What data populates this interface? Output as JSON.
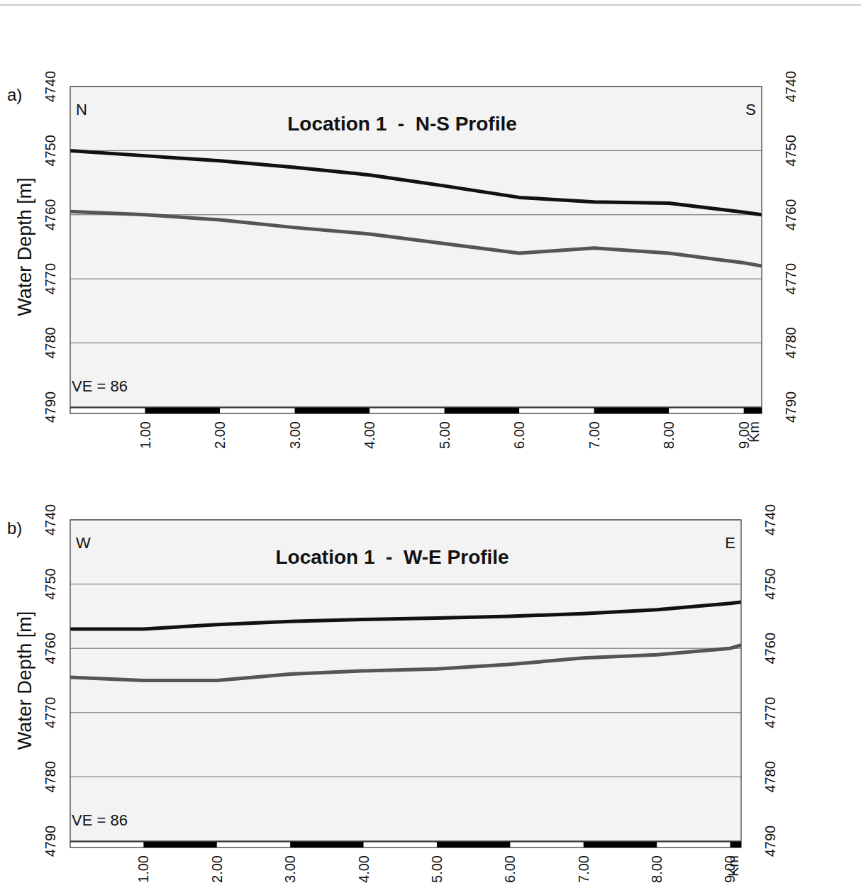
{
  "chart_data": [
    {
      "type": "line",
      "panel_label": "a)",
      "title": "Location 1  -  N-S Profile",
      "y_label": "Water Depth [m]",
      "x_label": "Km",
      "direction_labels": [
        "N",
        "S"
      ],
      "annotation": "VE = 86",
      "x": [
        0,
        1,
        2,
        3,
        4,
        5,
        6,
        7,
        8,
        9,
        9.24
      ],
      "series": [
        {
          "color": "#111111",
          "values": [
            4750,
            4750.8,
            4751.6,
            4752.6,
            4753.8,
            4755.5,
            4757.3,
            4758,
            4758.2,
            4759.6,
            4760
          ]
        },
        {
          "color": "#555555",
          "values": [
            4759.5,
            4760,
            4760.8,
            4762,
            4763,
            4764.5,
            4766,
            4765.2,
            4766,
            4767.5,
            4768
          ]
        }
      ],
      "xlim": [
        0,
        9.24
      ],
      "ylim": [
        4790,
        4740
      ],
      "xticks": [
        {
          "value": 1,
          "label": "1.00"
        },
        {
          "value": 2,
          "label": "2.00"
        },
        {
          "value": 3,
          "label": "3.00"
        },
        {
          "value": 4,
          "label": "4.00"
        },
        {
          "value": 5,
          "label": "5.00"
        },
        {
          "value": 6,
          "label": "6.00"
        },
        {
          "value": 7,
          "label": "7.00"
        },
        {
          "value": 8,
          "label": "8.00"
        },
        {
          "value": 9,
          "label": "9.00"
        }
      ],
      "yticks": [
        4740,
        4750,
        4760,
        4770,
        4780,
        4790
      ],
      "grid": true
    },
    {
      "type": "line",
      "panel_label": "b)",
      "title": "Location 1  -  W-E Profile",
      "y_label": "Water Depth [m]",
      "x_label": "Km",
      "direction_labels": [
        "W",
        "E"
      ],
      "annotation": "VE = 86",
      "x": [
        0,
        1,
        2,
        3,
        4,
        5,
        6,
        7,
        8,
        9,
        9.15
      ],
      "series": [
        {
          "color": "#111111",
          "values": [
            4757,
            4757,
            4756.3,
            4755.8,
            4755.5,
            4755.3,
            4755,
            4754.6,
            4754,
            4753,
            4752.8
          ]
        },
        {
          "color": "#555555",
          "values": [
            4764.5,
            4765,
            4765,
            4764,
            4763.5,
            4763.2,
            4762.5,
            4761.5,
            4761,
            4760,
            4759.5
          ]
        }
      ],
      "xlim": [
        0,
        9.15
      ],
      "ylim": [
        4790,
        4740
      ],
      "xticks": [
        {
          "value": 1,
          "label": "1.00"
        },
        {
          "value": 2,
          "label": "2.00"
        },
        {
          "value": 3,
          "label": "3.00"
        },
        {
          "value": 4,
          "label": "4.00"
        },
        {
          "value": 5,
          "label": "5.00"
        },
        {
          "value": 6,
          "label": "6.00"
        },
        {
          "value": 7,
          "label": "7.00"
        },
        {
          "value": 8,
          "label": "8.00"
        },
        {
          "value": 9,
          "label": "9.00"
        }
      ],
      "yticks": [
        4740,
        4750,
        4760,
        4770,
        4780,
        4790
      ],
      "grid": true
    }
  ]
}
